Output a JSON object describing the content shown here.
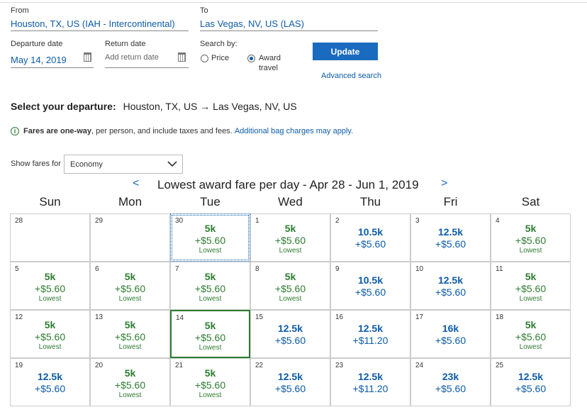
{
  "search": {
    "from_label": "From",
    "from_value": "Houston, TX, US (IAH - Intercontinental)",
    "to_label": "To",
    "to_value": "Las Vegas, NV, US (LAS)",
    "departure_label": "Departure date",
    "departure_value": "May 14, 2019",
    "return_label": "Return date",
    "return_placeholder": "Add return date",
    "search_by_label": "Search by:",
    "option_price": "Price",
    "option_award_line1": "Award",
    "option_award_line2": "travel",
    "update_label": "Update",
    "advanced_link": "Advanced search"
  },
  "departure": {
    "heading": "Select your departure:",
    "route": "Houston, TX, US → Las Vegas, NV, US"
  },
  "info": {
    "bold": "Fares are one-way",
    "rest": ", per person, and include taxes and fees.",
    "link": "Additional bag charges may apply."
  },
  "fares_filter": {
    "label": "Show fares for",
    "selected": "Economy"
  },
  "calendar": {
    "title": "Lowest award fare per day - Apr 28 - Jun 1, 2019",
    "prev": "<",
    "next": ">",
    "days": [
      "Sun",
      "Mon",
      "Tue",
      "Wed",
      "Thu",
      "Fri",
      "Sat"
    ],
    "lowest_label": "Lowest",
    "colors": {
      "green": "#2e7d32",
      "blue": "#0c5ba8"
    },
    "weeks": [
      [
        {
          "date": "28",
          "fare": "",
          "tax": "",
          "lowest": false
        },
        {
          "date": "29",
          "fare": "",
          "tax": "",
          "lowest": false
        },
        {
          "date": "30",
          "fare": "5k",
          "tax": "+$5.60",
          "lowest": true,
          "state": "focused"
        },
        {
          "date": "1",
          "fare": "5k",
          "tax": "+$5.60",
          "lowest": true
        },
        {
          "date": "2",
          "fare": "10.5k",
          "tax": "+$5.60",
          "lowest": false
        },
        {
          "date": "3",
          "fare": "12.5k",
          "tax": "+$5.60",
          "lowest": false
        },
        {
          "date": "4",
          "fare": "5k",
          "tax": "+$5.60",
          "lowest": true
        }
      ],
      [
        {
          "date": "5",
          "fare": "5k",
          "tax": "+$5.60",
          "lowest": true
        },
        {
          "date": "6",
          "fare": "5k",
          "tax": "+$5.60",
          "lowest": true
        },
        {
          "date": "7",
          "fare": "5k",
          "tax": "+$5.60",
          "lowest": true
        },
        {
          "date": "8",
          "fare": "5k",
          "tax": "+$5.60",
          "lowest": true
        },
        {
          "date": "9",
          "fare": "10.5k",
          "tax": "+$5.60",
          "lowest": false
        },
        {
          "date": "10",
          "fare": "12.5k",
          "tax": "+$5.60",
          "lowest": false
        },
        {
          "date": "11",
          "fare": "5k",
          "tax": "+$5.60",
          "lowest": true
        }
      ],
      [
        {
          "date": "12",
          "fare": "5k",
          "tax": "+$5.60",
          "lowest": true
        },
        {
          "date": "13",
          "fare": "5k",
          "tax": "+$5.60",
          "lowest": true
        },
        {
          "date": "14",
          "fare": "5k",
          "tax": "+$5.60",
          "lowest": true,
          "state": "selected"
        },
        {
          "date": "15",
          "fare": "12.5k",
          "tax": "+$5.60",
          "lowest": false
        },
        {
          "date": "16",
          "fare": "12.5k",
          "tax": "+$11.20",
          "lowest": false
        },
        {
          "date": "17",
          "fare": "16k",
          "tax": "+$5.60",
          "lowest": false
        },
        {
          "date": "18",
          "fare": "5k",
          "tax": "+$5.60",
          "lowest": true
        }
      ],
      [
        {
          "date": "19",
          "fare": "12.5k",
          "tax": "+$5.60",
          "lowest": false
        },
        {
          "date": "20",
          "fare": "5k",
          "tax": "+$5.60",
          "lowest": true
        },
        {
          "date": "21",
          "fare": "5k",
          "tax": "+$5.60",
          "lowest": true
        },
        {
          "date": "22",
          "fare": "12.5k",
          "tax": "+$5.60",
          "lowest": false
        },
        {
          "date": "23",
          "fare": "12.5k",
          "tax": "+$11.20",
          "lowest": false
        },
        {
          "date": "24",
          "fare": "23k",
          "tax": "+$5.60",
          "lowest": false
        },
        {
          "date": "25",
          "fare": "12.5k",
          "tax": "+$5.60",
          "lowest": false
        }
      ]
    ]
  }
}
